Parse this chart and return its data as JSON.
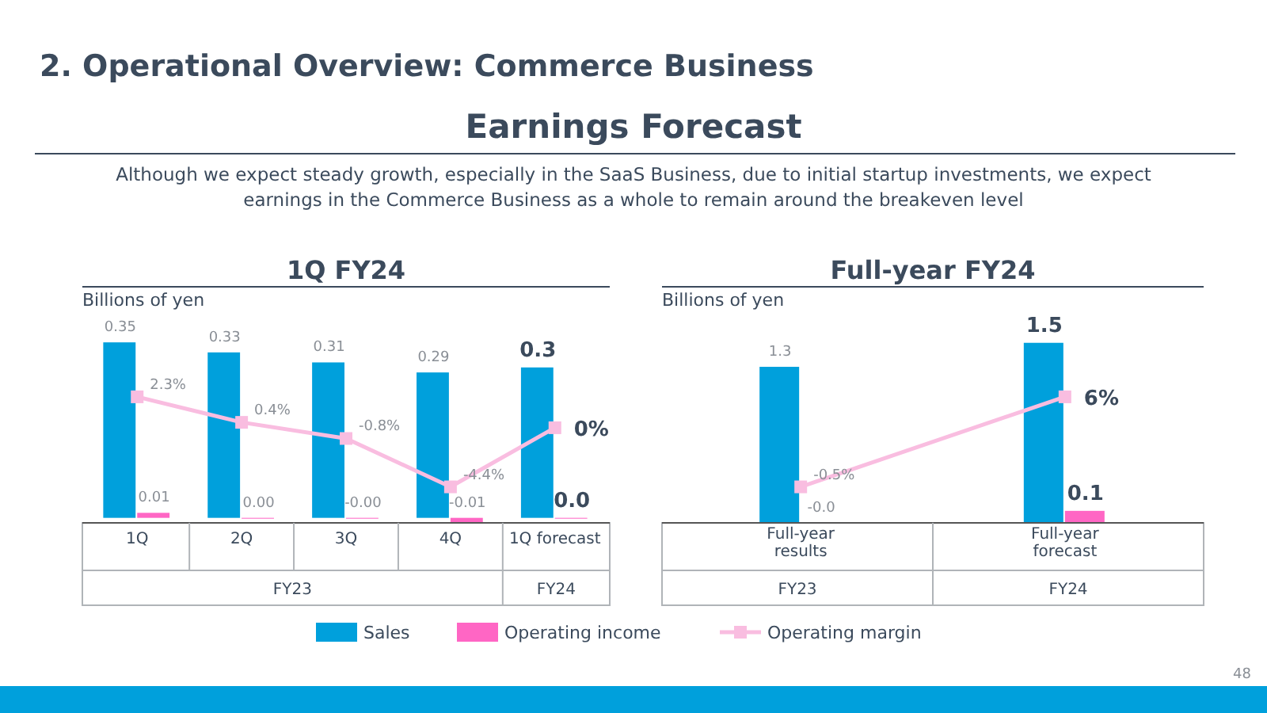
{
  "chart_data": [
    {
      "type": "bar",
      "title": "1Q FY24",
      "ylabel": "Billions of yen",
      "categories": [
        "1Q",
        "2Q",
        "3Q",
        "4Q",
        "1Q forecast"
      ],
      "legend": "bottom",
      "marker": "square",
      "annotations": [
        "2. Operational Overview: Commerce Business",
        "Earnings Forecast",
        "Although we expect steady growth, especially in the SaaS Business, due to initial startup investments, we expect earnings in the Commerce Business as a whole to remain around the breakeven level",
        "48",
        "FY23",
        "FY24"
      ],
      "series": [
        {
          "name": "Sales",
          "color": "#00a0dc",
          "values": [
            0.35,
            0.33,
            0.31,
            0.29,
            0.3
          ],
          "value_labels": [
            "0.35",
            "0.33",
            "0.31",
            "0.29",
            "0.3"
          ]
        },
        {
          "name": "Operating income",
          "color": "#ff66c4",
          "values": [
            0.01,
            0,
            0,
            -0.01,
            0
          ],
          "value_labels": [
            "0.01",
            "0.00",
            "-0.00",
            "-0.01",
            "0.0"
          ]
        },
        {
          "name": "Operating margin",
          "type": "line",
          "axis": "y2",
          "color": "#f9bde0",
          "values": [
            2.3,
            0.4,
            -0.8,
            -4.4,
            0
          ],
          "value_labels": [
            "2.3%",
            "0.4%",
            "-0.8%",
            "-4.4%",
            "0%"
          ]
        }
      ]
    },
    {
      "type": "bar",
      "title": "Full-year FY24",
      "ylabel": "Billions of yen",
      "categories": [
        "Full-year results",
        "Full-year forecast"
      ],
      "marker": "square",
      "annotations": [
        "FY23",
        "FY24"
      ],
      "series": [
        {
          "color": "#00a0dc",
          "values": [
            1.3,
            1.5
          ],
          "value_labels": [
            "1.3",
            "1.5"
          ]
        },
        {
          "color": "#ff66c4",
          "values": [
            0,
            0.1
          ],
          "value_labels": [
            "-0.0",
            "0.1"
          ]
        },
        {
          "type": "line",
          "axis": "y2",
          "color": "#f9bde0",
          "values": [
            -0.5,
            6
          ],
          "value_labels": [
            "-0.5%",
            "6%"
          ]
        }
      ]
    }
  ]
}
